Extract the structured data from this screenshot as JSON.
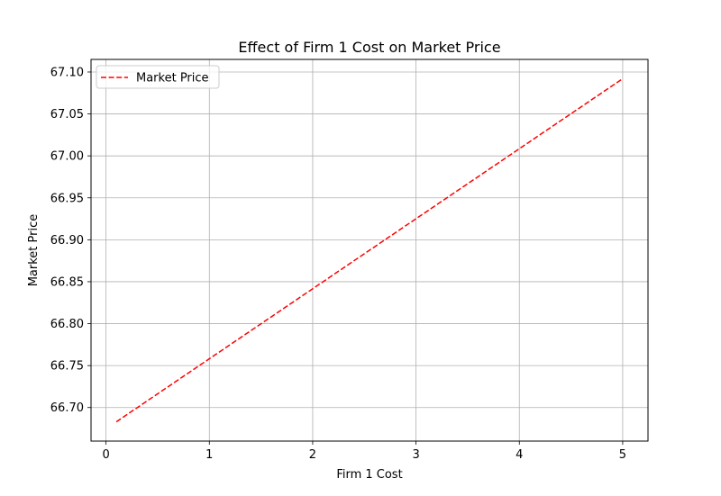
{
  "chart_data": {
    "type": "line",
    "title": "Effect of Firm 1 Cost on Market Price",
    "xlabel": "Firm 1 Cost",
    "ylabel": "Market Price",
    "xlim": [
      -0.145,
      5.245
    ],
    "ylim": [
      66.66,
      67.115
    ],
    "xticks": [
      0,
      1,
      2,
      3,
      4,
      5
    ],
    "xtick_labels": [
      "0",
      "1",
      "2",
      "3",
      "4",
      "5"
    ],
    "yticks": [
      66.7,
      66.75,
      66.8,
      66.85,
      66.9,
      66.95,
      67.0,
      67.05,
      67.1
    ],
    "ytick_labels": [
      "66.70",
      "66.75",
      "66.80",
      "66.85",
      "66.90",
      "66.95",
      "67.00",
      "67.05",
      "67.10"
    ],
    "grid": true,
    "legend_position": "top-left",
    "series": [
      {
        "name": "Market Price",
        "color": "#ff0000",
        "linestyle": "dashed",
        "x": [
          0.1,
          5.0
        ],
        "y": [
          66.683,
          67.092
        ]
      }
    ]
  }
}
